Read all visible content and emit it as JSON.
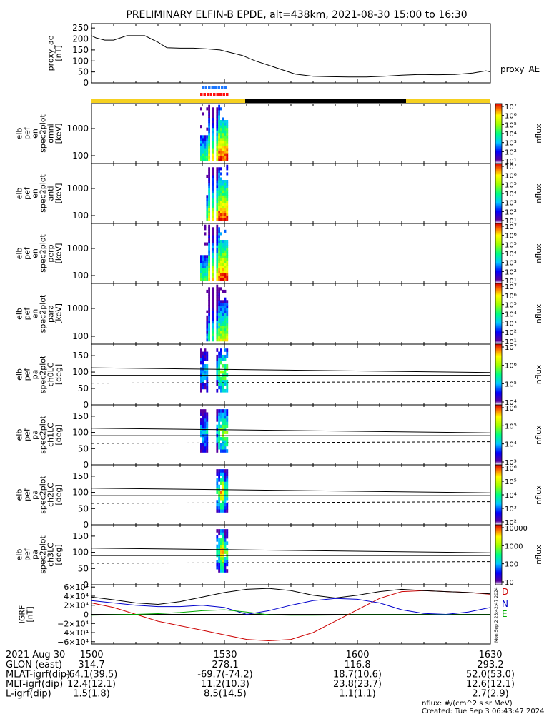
{
  "title": "PRELIMINARY ELFIN-B EPDE, alt=438km, 2021-08-30 15:00 to 16:30",
  "chart_data": [
    {
      "id": "proxy_ae",
      "type": "line",
      "ylabel_lines": [
        "proxy_ae",
        "[nT]"
      ],
      "right_label": "proxy_AE",
      "yticks": [
        0,
        50,
        100,
        150,
        200,
        250
      ],
      "ylim": [
        0,
        270
      ],
      "x_minutes": [
        0,
        1,
        3,
        5,
        8,
        10,
        12,
        15,
        17,
        20,
        23,
        26,
        29,
        31,
        34,
        37,
        40,
        43,
        46,
        50,
        54,
        58,
        62,
        66,
        70,
        74,
        78,
        82,
        86,
        89,
        90
      ],
      "values": [
        215,
        205,
        195,
        195,
        215,
        215,
        215,
        185,
        160,
        158,
        158,
        155,
        150,
        140,
        125,
        100,
        80,
        60,
        40,
        30,
        28,
        27,
        27,
        30,
        35,
        38,
        37,
        38,
        45,
        55,
        50
      ]
    },
    {
      "id": "spec_omni",
      "type": "heatmap",
      "ylabel_lines": [
        "elb",
        "pef",
        "en",
        "spec2plot",
        "omni",
        "[keV]"
      ],
      "yticks": [
        "100",
        "1000"
      ],
      "colorbar_label": "nflux",
      "colorbar_ticks": [
        "10¹",
        "10²",
        "10³",
        "10⁴",
        "10⁵",
        "10⁶",
        "10⁷"
      ]
    },
    {
      "id": "spec_anti",
      "type": "heatmap",
      "ylabel_lines": [
        "elb",
        "pef",
        "en",
        "spec2plot",
        "anti",
        "[keV]"
      ],
      "yticks": [
        "100",
        "1000"
      ],
      "colorbar_label": "nflux",
      "colorbar_ticks": [
        "10¹",
        "10²",
        "10³",
        "10⁴",
        "10⁵",
        "10⁶",
        "10⁷"
      ]
    },
    {
      "id": "spec_perp",
      "type": "heatmap",
      "ylabel_lines": [
        "elb",
        "pef",
        "en",
        "spec2plot",
        "perp",
        "[keV]"
      ],
      "yticks": [
        "100",
        "1000"
      ],
      "colorbar_label": "nflux",
      "colorbar_ticks": [
        "10¹",
        "10²",
        "10³",
        "10⁴",
        "10⁵",
        "10⁶",
        "10⁷"
      ]
    },
    {
      "id": "spec_para",
      "type": "heatmap",
      "ylabel_lines": [
        "elb",
        "pef",
        "en",
        "spec2plot",
        "para",
        "[keV]"
      ],
      "yticks": [
        "100",
        "1000"
      ],
      "colorbar_label": "nflux",
      "colorbar_ticks": [
        "10¹",
        "10²",
        "10³",
        "10⁴",
        "10⁵",
        "10⁶",
        "10⁷"
      ]
    },
    {
      "id": "pa_ch0",
      "type": "heatmap",
      "ylabel_lines": [
        "elb",
        "pef",
        "pa",
        "spec2plot",
        "ch0LC",
        "[deg]"
      ],
      "yticks": [
        "0",
        "50",
        "100",
        "150"
      ],
      "colorbar_label": "nflux",
      "colorbar_ticks": [
        "10⁴",
        "10⁵",
        "10⁶",
        "10⁷"
      ]
    },
    {
      "id": "pa_ch1",
      "type": "heatmap",
      "ylabel_lines": [
        "elb",
        "pef",
        "pa",
        "spec2plot",
        "ch1LC",
        "[deg]"
      ],
      "yticks": [
        "0",
        "50",
        "100",
        "150"
      ],
      "colorbar_label": "nflux",
      "colorbar_ticks": [
        "10³",
        "10⁴",
        "10⁵",
        "10⁶"
      ]
    },
    {
      "id": "pa_ch2",
      "type": "heatmap",
      "ylabel_lines": [
        "elb",
        "pef",
        "pa",
        "spec2plot",
        "ch2LC",
        "[deg]"
      ],
      "yticks": [
        "0",
        "50",
        "100",
        "150"
      ],
      "colorbar_label": "nflux",
      "colorbar_ticks": [
        "10²",
        "10³",
        "10⁴",
        "10⁵",
        "10⁶"
      ]
    },
    {
      "id": "pa_ch3",
      "type": "heatmap",
      "ylabel_lines": [
        "elb",
        "pef",
        "pa",
        "spec2plot",
        "ch3LC",
        "[deg]"
      ],
      "yticks": [
        "0",
        "50",
        "100",
        "150"
      ],
      "colorbar_label": "nflux",
      "colorbar_ticks": [
        "10",
        "100",
        "1000",
        "10000"
      ]
    },
    {
      "id": "igrf",
      "type": "line",
      "ylabel_lines": [
        "IGRF",
        "[nT]"
      ],
      "yticks": [
        "−6×10⁴",
        "−4×10⁴",
        "−2×10⁴",
        "0",
        "2×10⁴",
        "4×10⁴",
        "6×10⁴"
      ],
      "ylim": [
        -65000,
        65000
      ],
      "stamp": "Mon Sep  2 23:42:47 2024",
      "x_minutes": [
        0,
        5,
        10,
        15,
        20,
        25,
        30,
        35,
        40,
        45,
        50,
        55,
        60,
        65,
        70,
        75,
        80,
        85,
        90
      ],
      "series": [
        {
          "name": "D",
          "color": "#cc0000",
          "values": [
            25000,
            15000,
            0,
            -15000,
            -25000,
            -35000,
            -45000,
            -55000,
            -58000,
            -55000,
            -40000,
            -15000,
            10000,
            35000,
            50000,
            52000,
            50000,
            48000,
            44000
          ]
        },
        {
          "name": "N",
          "color": "#0000cc",
          "values": [
            30000,
            25000,
            20000,
            17000,
            17000,
            20000,
            15000,
            0,
            8000,
            20000,
            30000,
            35000,
            33000,
            25000,
            10000,
            2000,
            0,
            5000,
            15000
          ]
        },
        {
          "name": "E",
          "color": "#00aa00",
          "values": [
            -2000,
            -1000,
            0,
            1500,
            4000,
            8000,
            10000,
            5000,
            -1000,
            -2000,
            -2000,
            -1500,
            -1000,
            -1000,
            -1000,
            -1000,
            -1000,
            -1000,
            -1000
          ]
        },
        {
          "name": "",
          "color": "#000000",
          "values": [
            38000,
            32000,
            25000,
            22000,
            28000,
            38000,
            48000,
            55000,
            57000,
            52000,
            42000,
            36000,
            42000,
            50000,
            55000,
            52000,
            50000,
            48000,
            45000
          ]
        }
      ]
    }
  ],
  "footer": {
    "date_label": "2021 Aug 30",
    "times": [
      "1500",
      "1530",
      "1600",
      "1630"
    ],
    "rows": [
      {
        "label": "GLON (east)",
        "values": [
          "314.7",
          "278.1",
          "116.8",
          "293.2"
        ]
      },
      {
        "label": "MLAT-igrf(dip)",
        "values": [
          "-64.1(39.5)",
          "-69.7(-74.2)",
          "18.7(10.6)",
          "52.0(53.0)"
        ]
      },
      {
        "label": "MLT-igrf(dip)",
        "values": [
          "12.4(12.1)",
          "11.2(10.3)",
          "23.8(23.7)",
          "12.6(12.1)"
        ]
      },
      {
        "label": "L-igrf(dip)",
        "values": [
          "1.5(1.8)",
          "8.5(14.5)",
          "1.1(1.1)",
          "2.7(2.9)"
        ]
      }
    ],
    "units_note": "nflux: #/(cm^2 s sr MeV)",
    "created": "Created: Tue Sep  3 06:43:47 2024"
  }
}
